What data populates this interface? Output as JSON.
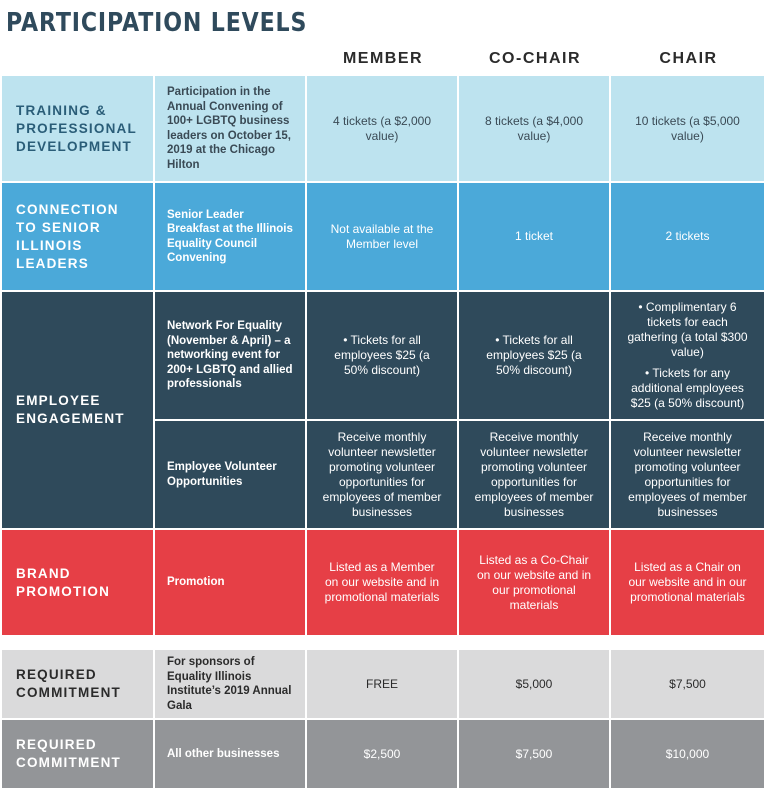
{
  "title": "PARTICIPATION LEVELS",
  "headers": [
    "MEMBER",
    "CO-CHAIR",
    "CHAIR"
  ],
  "rows": [
    {
      "category": "TRAINING & PROFESSIONAL DEVELOPMENT",
      "items": [
        {
          "label": "Participation in the Annual Convening of 100+ LGBTQ business leaders on October 15, 2019 at the Chicago Hilton",
          "cells": [
            "4 tickets (a $2,000 value)",
            "8 tickets (a $4,000 value)",
            "10 tickets (a $5,000 value)"
          ]
        }
      ]
    },
    {
      "category": "CONNECTION TO SENIOR ILLINOIS LEADERS",
      "items": [
        {
          "label": "Senior Leader Breakfast at the Illinois Equality Council Convening",
          "cells": [
            "Not available at the Member level",
            "1 ticket",
            "2 tickets"
          ]
        }
      ]
    },
    {
      "category": "EMPLOYEE ENGAGEMENT",
      "items": [
        {
          "label": "Network For Equality (November & April) – a networking event for 200+ LGBTQ and allied professionals",
          "cells": [
            "• Tickets for all employees $25 (a 50% discount)",
            "• Tickets for all employees $25 (a 50% discount)",
            [
              "• Complimentary 6 tickets for each gathering (a total $300 value)",
              "• Tickets for any additional employees $25 (a 50% discount)"
            ]
          ]
        },
        {
          "label": "Employee Volunteer Opportunities",
          "cells": [
            "Receive monthly volunteer newsletter promoting volunteer opportunities for employees of member businesses",
            "Receive monthly volunteer newsletter promoting volunteer opportunities for employees of member businesses",
            "Receive monthly volunteer newsletter promoting volunteer opportunities for employees of member businesses"
          ]
        }
      ]
    },
    {
      "category": "BRAND PROMOTION",
      "items": [
        {
          "label": "Promotion",
          "cells": [
            "Listed as a Member on our website and in promotional materials",
            "Listed as a Co-Chair on our website and in our promotional materials",
            "Listed as a Chair on our website and in our promotional materials"
          ]
        }
      ]
    },
    {
      "category": "REQUIRED COMMITMENT",
      "items": [
        {
          "label": "For sponsors of Equality Illinois Institute’s 2019 Annual Gala",
          "cells": [
            "FREE",
            "$5,000",
            "$7,500"
          ]
        }
      ]
    },
    {
      "category": "REQUIRED COMMITMENT",
      "items": [
        {
          "label": "All other businesses",
          "cells": [
            "$2,500",
            "$7,500",
            "$10,000"
          ]
        }
      ]
    }
  ]
}
